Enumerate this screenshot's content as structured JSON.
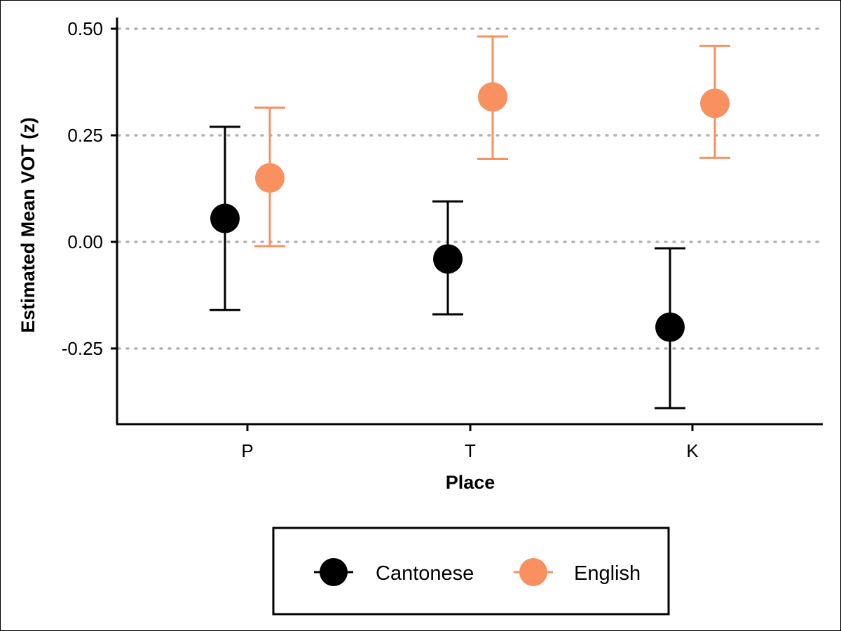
{
  "chart_data": {
    "type": "scatter",
    "subtype": "point-with-error-bars",
    "xlabel": "Place",
    "ylabel": "Estimated Mean VOT (z)",
    "categories": [
      "P",
      "T",
      "K"
    ],
    "ylim": [
      -0.42,
      0.52
    ],
    "yticks": [
      -0.25,
      0.0,
      0.25,
      0.5
    ],
    "ytick_labels": [
      "-0.25",
      "0.00",
      "0.25",
      "0.50"
    ],
    "grid": "horizontal dotted at y ticks",
    "legend_position": "bottom",
    "series": [
      {
        "name": "Cantonese",
        "color": "#000000",
        "values": [
          0.055,
          -0.04,
          -0.2
        ],
        "lower": [
          -0.16,
          -0.17,
          -0.39
        ],
        "upper": [
          0.27,
          0.095,
          -0.015
        ]
      },
      {
        "name": "English",
        "color": "#f8905f",
        "values": [
          0.15,
          0.34,
          0.325
        ],
        "lower": [
          -0.01,
          0.195,
          0.197
        ],
        "upper": [
          0.315,
          0.482,
          0.46
        ]
      }
    ]
  }
}
